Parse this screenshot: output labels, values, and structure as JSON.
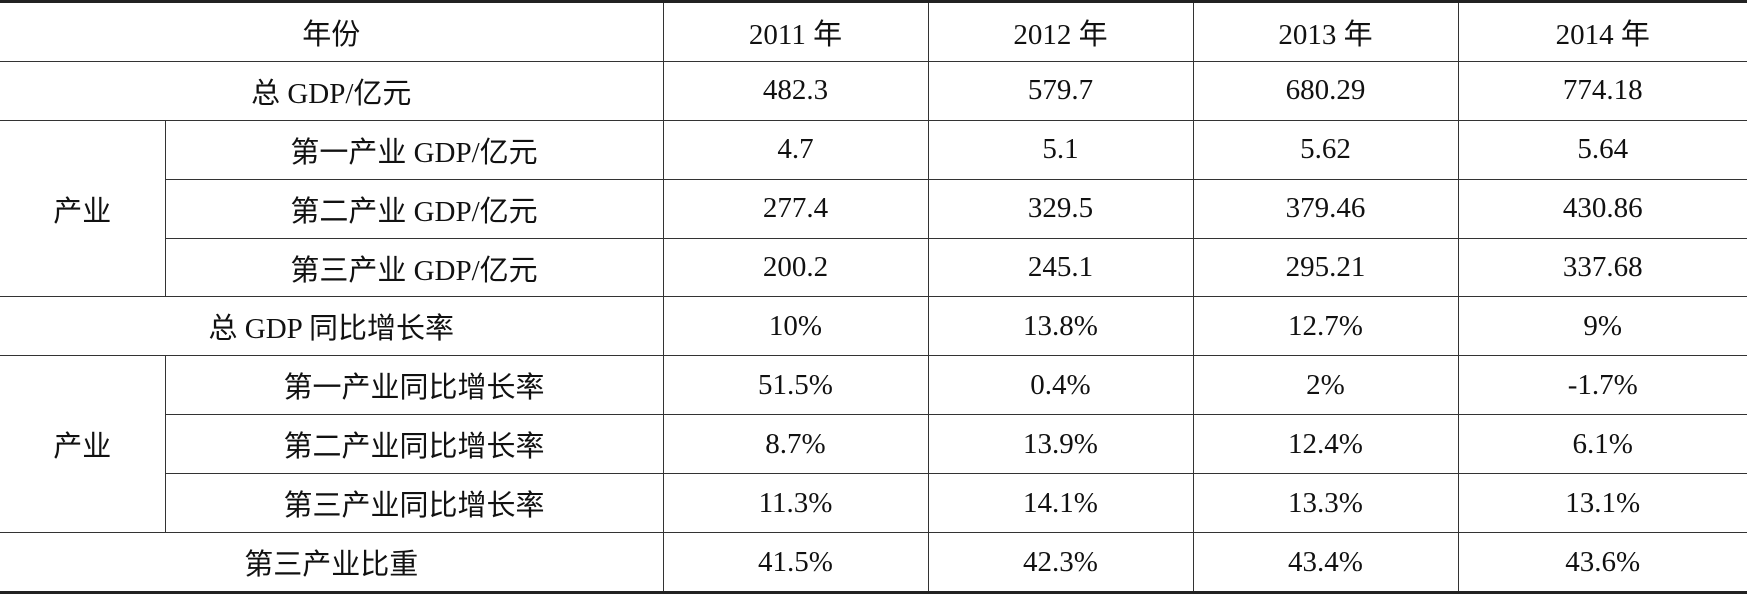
{
  "table": {
    "header": [
      "年份",
      "2011 年",
      "2012 年",
      "2013 年",
      "2014 年"
    ],
    "rows": [
      {
        "label": "总 GDP/亿元",
        "values": [
          "482.3",
          "579.7",
          "680.29",
          "774.18"
        ]
      },
      {
        "group": "产业",
        "items": [
          {
            "label": "第一产业 GDP/亿元",
            "values": [
              "4.7",
              "5.1",
              "5.62",
              "5.64"
            ]
          },
          {
            "label": "第二产业 GDP/亿元",
            "values": [
              "277.4",
              "329.5",
              "379.46",
              "430.86"
            ]
          },
          {
            "label": "第三产业 GDP/亿元",
            "values": [
              "200.2",
              "245.1",
              "295.21",
              "337.68"
            ]
          }
        ]
      },
      {
        "label": "总 GDP 同比增长率",
        "values": [
          "10%",
          "13.8%",
          "12.7%",
          "9%"
        ]
      },
      {
        "group": "产业",
        "items": [
          {
            "label": "第一产业同比增长率",
            "values": [
              "51.5%",
              "0.4%",
              "2%",
              "-1.7%"
            ]
          },
          {
            "label": "第二产业同比增长率",
            "values": [
              "8.7%",
              "13.9%",
              "12.4%",
              "6.1%"
            ]
          },
          {
            "label": "第三产业同比增长率",
            "values": [
              "11.3%",
              "14.1%",
              "13.3%",
              "13.1%"
            ]
          }
        ]
      },
      {
        "label": "第三产业比重",
        "values": [
          "41.5%",
          "42.3%",
          "43.4%",
          "43.6%"
        ]
      }
    ]
  }
}
